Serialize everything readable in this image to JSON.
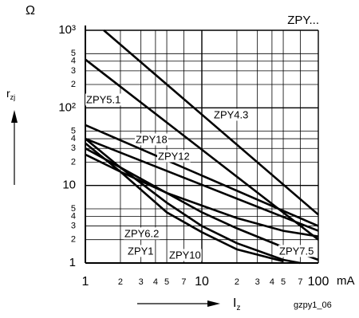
{
  "chart_data": {
    "type": "line",
    "title": "ZPY...",
    "y_unit": "Ω",
    "y_label": {
      "main": "r",
      "sub": "zj"
    },
    "x_label": {
      "main": "I",
      "sub": "z"
    },
    "x_unit": "mA",
    "figure_id": "gzpy1_06",
    "xlog": true,
    "ylog": true,
    "grid": true,
    "color": "#000000",
    "xlim": [
      1,
      100
    ],
    "ylim": [
      1,
      1000
    ],
    "xticks": [
      1,
      2,
      3,
      4,
      5,
      7,
      10,
      {
        "value": 20,
        "label": "2"
      },
      {
        "value": 30,
        "label": "3"
      },
      {
        "value": 40,
        "label": "4"
      },
      {
        "value": 50,
        "label": "5"
      },
      {
        "value": 70,
        "label": "7"
      },
      100
    ],
    "yticks": [
      1,
      2,
      3,
      4,
      5,
      10,
      {
        "value": 20,
        "label": "2"
      },
      {
        "value": 30,
        "label": "3"
      },
      {
        "value": 40,
        "label": "4"
      },
      {
        "value": 50,
        "label": "5"
      },
      {
        "value": 100,
        "label": "10²"
      },
      {
        "value": 200,
        "label": "2"
      },
      {
        "value": 300,
        "label": "3"
      },
      {
        "value": 400,
        "label": "4"
      },
      {
        "value": 500,
        "label": "5"
      },
      {
        "value": 1000,
        "label": "10³"
      }
    ],
    "series": [
      {
        "name": "ZPY4.3",
        "x": [
          1.44,
          100
        ],
        "values": [
          1000,
          4.2
        ]
      },
      {
        "name": "ZPY5.1",
        "x": [
          1,
          100
        ],
        "values": [
          420,
          2.0
        ]
      },
      {
        "name": "ZPY18",
        "x": [
          1,
          100
        ],
        "values": [
          60,
          3.0
        ]
      },
      {
        "name": "ZPY12",
        "x": [
          1,
          100
        ],
        "values": [
          40,
          2.6
        ]
      },
      {
        "name": "ZPY6.2",
        "x": [
          1,
          2,
          5,
          10,
          20,
          50
        ],
        "values": [
          35,
          15,
          4.5,
          2.5,
          1.5,
          1.05
        ]
      },
      {
        "name": "ZPY1",
        "x": [
          1,
          2,
          5,
          10,
          20,
          50,
          70
        ],
        "values": [
          40,
          17,
          6,
          3,
          1.8,
          1.1,
          1
        ]
      },
      {
        "name": "ZPY10",
        "x": [
          1,
          2,
          5,
          10,
          20,
          50,
          100
        ],
        "values": [
          30,
          17,
          8,
          4.5,
          2.8,
          1.6,
          1.1
        ]
      },
      {
        "name": "ZPY7.5",
        "x": [
          1,
          2,
          5,
          10,
          20,
          50,
          100
        ],
        "values": [
          25,
          15,
          8,
          5.5,
          3.8,
          2.6,
          2.2
        ]
      }
    ]
  }
}
